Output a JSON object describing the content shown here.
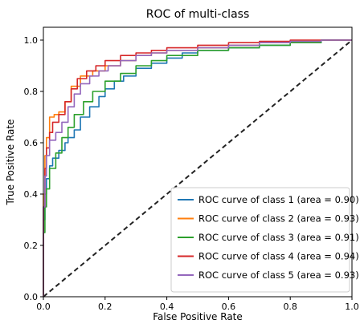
{
  "chart_data": {
    "type": "line",
    "title": "ROC of multi-class",
    "xlabel": "False Positive Rate",
    "ylabel": "True Positive Rate",
    "xlim": [
      0.0,
      1.0
    ],
    "ylim": [
      0.0,
      1.05
    ],
    "xticks": [
      "0.0",
      "0.2",
      "0.4",
      "0.6",
      "0.8",
      "1.0"
    ],
    "yticks": [
      "0.0",
      "0.2",
      "0.4",
      "0.6",
      "0.8",
      "1.0"
    ],
    "grid": false,
    "legend_position": "lower-right",
    "diagonal": {
      "style": "dashed",
      "color": "#222222",
      "points": [
        [
          0,
          0
        ],
        [
          1,
          1
        ]
      ]
    },
    "series": [
      {
        "name": "ROC curve of class 1 (area = 0.90)",
        "color": "#1f77b4",
        "x": [
          0.0,
          0.0,
          0.005,
          0.01,
          0.02,
          0.03,
          0.05,
          0.07,
          0.08,
          0.1,
          0.12,
          0.15,
          0.18,
          0.2,
          0.23,
          0.26,
          0.3,
          0.35,
          0.4,
          0.45,
          0.5,
          0.6,
          0.7,
          0.8,
          0.9,
          1.0
        ],
        "y": [
          0.0,
          0.3,
          0.4,
          0.46,
          0.51,
          0.54,
          0.57,
          0.6,
          0.62,
          0.65,
          0.7,
          0.74,
          0.78,
          0.81,
          0.84,
          0.86,
          0.89,
          0.91,
          0.93,
          0.95,
          0.96,
          0.97,
          0.98,
          0.99,
          1.0,
          1.0
        ]
      },
      {
        "name": "ROC curve of class 2 (area = 0.93)",
        "color": "#ff7f0e",
        "x": [
          0.0,
          0.0,
          0.005,
          0.01,
          0.02,
          0.035,
          0.05,
          0.07,
          0.09,
          0.12,
          0.16,
          0.2,
          0.25,
          0.3,
          0.35,
          0.4,
          0.5,
          0.6,
          0.7,
          0.8,
          0.9,
          1.0
        ],
        "y": [
          0.0,
          0.4,
          0.55,
          0.62,
          0.7,
          0.71,
          0.72,
          0.76,
          0.82,
          0.86,
          0.88,
          0.9,
          0.92,
          0.94,
          0.95,
          0.96,
          0.97,
          0.98,
          0.99,
          0.995,
          1.0,
          1.0
        ]
      },
      {
        "name": "ROC curve of class 3 (area = 0.91)",
        "color": "#2ca02c",
        "x": [
          0.0,
          0.0,
          0.005,
          0.01,
          0.02,
          0.04,
          0.06,
          0.08,
          0.1,
          0.13,
          0.16,
          0.2,
          0.25,
          0.3,
          0.35,
          0.4,
          0.5,
          0.6,
          0.7,
          0.8,
          0.9,
          1.0
        ],
        "y": [
          0.0,
          0.25,
          0.35,
          0.42,
          0.5,
          0.56,
          0.62,
          0.66,
          0.71,
          0.76,
          0.8,
          0.84,
          0.87,
          0.9,
          0.92,
          0.94,
          0.96,
          0.97,
          0.98,
          0.99,
          1.0,
          1.0
        ]
      },
      {
        "name": "ROC curve of class 4 (area = 0.94)",
        "color": "#d62728",
        "x": [
          0.0,
          0.0,
          0.005,
          0.01,
          0.02,
          0.03,
          0.05,
          0.07,
          0.09,
          0.11,
          0.14,
          0.17,
          0.2,
          0.25,
          0.3,
          0.35,
          0.4,
          0.5,
          0.6,
          0.7,
          0.8,
          0.9,
          1.0
        ],
        "y": [
          0.0,
          0.35,
          0.5,
          0.58,
          0.64,
          0.68,
          0.71,
          0.76,
          0.81,
          0.85,
          0.88,
          0.9,
          0.92,
          0.94,
          0.95,
          0.96,
          0.97,
          0.98,
          0.99,
          0.995,
          1.0,
          1.0,
          1.0
        ]
      },
      {
        "name": "ROC curve of class 5 (area = 0.93)",
        "color": "#9467bd",
        "x": [
          0.0,
          0.0,
          0.005,
          0.01,
          0.02,
          0.04,
          0.06,
          0.08,
          0.1,
          0.12,
          0.15,
          0.18,
          0.21,
          0.25,
          0.3,
          0.35,
          0.4,
          0.5,
          0.6,
          0.7,
          0.8,
          0.9,
          1.0
        ],
        "y": [
          0.0,
          0.35,
          0.47,
          0.55,
          0.61,
          0.64,
          0.68,
          0.74,
          0.79,
          0.83,
          0.86,
          0.88,
          0.9,
          0.92,
          0.94,
          0.95,
          0.96,
          0.97,
          0.98,
          0.99,
          0.995,
          1.0,
          1.0
        ]
      }
    ]
  }
}
